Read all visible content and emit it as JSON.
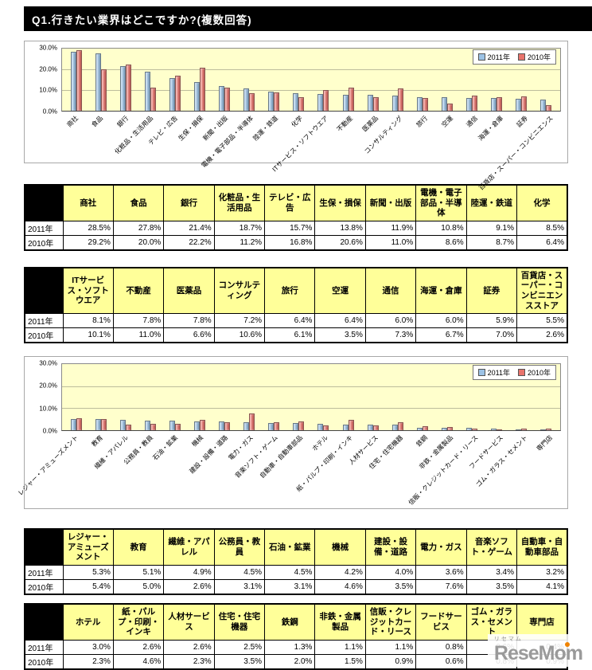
{
  "page": {
    "title": "Q1.行きたい業界はどこですか?(複数回答)"
  },
  "colors": {
    "series_2011": "#9CC2E5",
    "series_2010": "#E8736C",
    "plot_bg": "#FFFFCC",
    "table_header_bg": "#FFFF99",
    "title_bar_bg": "#000000",
    "accent_orange": "#F08300"
  },
  "chart_data": [
    {
      "type": "bar",
      "title": "",
      "categories": [
        "商社",
        "食品",
        "銀行",
        "化粧品・生活用品",
        "テレビ・広告",
        "生保・損保",
        "新聞・出版",
        "電機・電子部品・半導体",
        "陸運・鉄道",
        "化学",
        "ITサービス・ソフトウエア",
        "不動産",
        "医薬品",
        "コンサルティング",
        "旅行",
        "空運",
        "通信",
        "海運・倉庫",
        "証券",
        "百貨店・スーパー・コンビニエンス"
      ],
      "series": [
        {
          "name": "2011年",
          "values": [
            28.5,
            27.8,
            21.4,
            18.7,
            15.7,
            13.8,
            11.9,
            10.8,
            9.1,
            8.5,
            8.1,
            7.8,
            7.8,
            7.2,
            6.4,
            6.4,
            6.0,
            6.0,
            5.9,
            5.5
          ]
        },
        {
          "name": "2010年",
          "values": [
            29.2,
            20.0,
            22.2,
            11.2,
            16.8,
            20.6,
            11.0,
            8.6,
            8.7,
            6.4,
            10.1,
            11.0,
            6.6,
            10.6,
            6.1,
            3.5,
            7.3,
            6.7,
            7.0,
            2.6
          ]
        }
      ],
      "xlabel": "",
      "ylabel": "",
      "ylim": [
        0,
        30
      ],
      "yticks": [
        "30.0%",
        "20.0%",
        "10.0%",
        "0.0%"
      ],
      "grid": true,
      "legend_position": "top-right"
    },
    {
      "type": "bar",
      "title": "",
      "categories": [
        "レジャー・アミューズメント",
        "教育",
        "繊維・アパレル",
        "公務員・教員",
        "石油・鉱業",
        "機械",
        "建設・設備・道路",
        "電力・ガス",
        "音楽ソフト・ゲーム",
        "自動車・自動車部品",
        "ホテル",
        "紙・パルプ・印刷・インキ",
        "人材サービス",
        "住宅・住宅機器",
        "鉄鋼",
        "非鉄・金属製品",
        "信販・クレジットカード・リース",
        "フードサービス",
        "ゴム・ガラス・セメント",
        "専門店"
      ],
      "series": [
        {
          "name": "2011年",
          "values": [
            5.3,
            5.1,
            4.9,
            4.5,
            4.5,
            4.2,
            4.0,
            3.6,
            3.4,
            3.2,
            3.0,
            2.6,
            2.6,
            2.5,
            1.3,
            1.1,
            1.1,
            0.8,
            0.6,
            0.4
          ]
        },
        {
          "name": "2010年",
          "values": [
            5.4,
            5.0,
            2.6,
            3.1,
            3.1,
            4.6,
            3.5,
            7.6,
            3.5,
            4.1,
            2.3,
            4.6,
            2.3,
            3.5,
            2.0,
            1.5,
            0.9,
            0.6,
            0.8,
            0.9
          ]
        }
      ],
      "xlabel": "",
      "ylabel": "",
      "ylim": [
        0,
        30
      ],
      "yticks": [
        "30.0%",
        "20.0%",
        "10.0%",
        "0.0%"
      ],
      "grid": true,
      "legend_position": "top-right"
    }
  ],
  "tables": [
    {
      "row_labels": [
        "2011年",
        "2010年"
      ],
      "columns": [
        "商社",
        "食品",
        "銀行",
        "化粧品・生活用品",
        "テレビ・広告",
        "生保・損保",
        "新聞・出版",
        "電機・電子部品・半導体",
        "陸運・鉄道",
        "化学"
      ],
      "rows": [
        [
          "28.5%",
          "27.8%",
          "21.4%",
          "18.7%",
          "15.7%",
          "13.8%",
          "11.9%",
          "10.8%",
          "9.1%",
          "8.5%"
        ],
        [
          "29.2%",
          "20.0%",
          "22.2%",
          "11.2%",
          "16.8%",
          "20.6%",
          "11.0%",
          "8.6%",
          "8.7%",
          "6.4%"
        ]
      ]
    },
    {
      "row_labels": [
        "2011年",
        "2010年"
      ],
      "columns": [
        "ITサービス・ソフトウエア",
        "不動産",
        "医薬品",
        "コンサルティング",
        "旅行",
        "空運",
        "通信",
        "海運・倉庫",
        "証券",
        "百貨店・スーパー・コンビニエンスストア"
      ],
      "rows": [
        [
          "8.1%",
          "7.8%",
          "7.8%",
          "7.2%",
          "6.4%",
          "6.4%",
          "6.0%",
          "6.0%",
          "5.9%",
          "5.5%"
        ],
        [
          "10.1%",
          "11.0%",
          "6.6%",
          "10.6%",
          "6.1%",
          "3.5%",
          "7.3%",
          "6.7%",
          "7.0%",
          "2.6%"
        ]
      ]
    },
    {
      "row_labels": [
        "2011年",
        "2010年"
      ],
      "columns": [
        "レジャー・アミューズメント",
        "教育",
        "繊維・アパレル",
        "公務員・教員",
        "石油・鉱業",
        "機械",
        "建設・設備・道路",
        "電力・ガス",
        "音楽ソフト・ゲーム",
        "自動車・自動車部品"
      ],
      "rows": [
        [
          "5.3%",
          "5.1%",
          "4.9%",
          "4.5%",
          "4.5%",
          "4.2%",
          "4.0%",
          "3.6%",
          "3.4%",
          "3.2%"
        ],
        [
          "5.4%",
          "5.0%",
          "2.6%",
          "3.1%",
          "3.1%",
          "4.6%",
          "3.5%",
          "7.6%",
          "3.5%",
          "4.1%"
        ]
      ]
    },
    {
      "row_labels": [
        "2011年",
        "2010年"
      ],
      "columns": [
        "ホテル",
        "紙・パルプ・印刷・インキ",
        "人材サービス",
        "住宅・住宅機器",
        "鉄鋼",
        "非鉄・金属製品",
        "信販・クレジットカード・リース",
        "フードサービス",
        "ゴム・ガラス・セメント",
        "専門店"
      ],
      "rows": [
        [
          "3.0%",
          "2.6%",
          "2.6%",
          "2.5%",
          "1.3%",
          "1.1%",
          "1.1%",
          "0.8%",
          "0.6%",
          "0.4%"
        ],
        [
          "2.3%",
          "4.6%",
          "2.3%",
          "3.5%",
          "2.0%",
          "1.5%",
          "0.9%",
          "0.6%",
          "0.8%",
          "0.9%"
        ]
      ]
    }
  ],
  "watermark": {
    "sub": "リセマム",
    "brand": "ReseMom"
  }
}
